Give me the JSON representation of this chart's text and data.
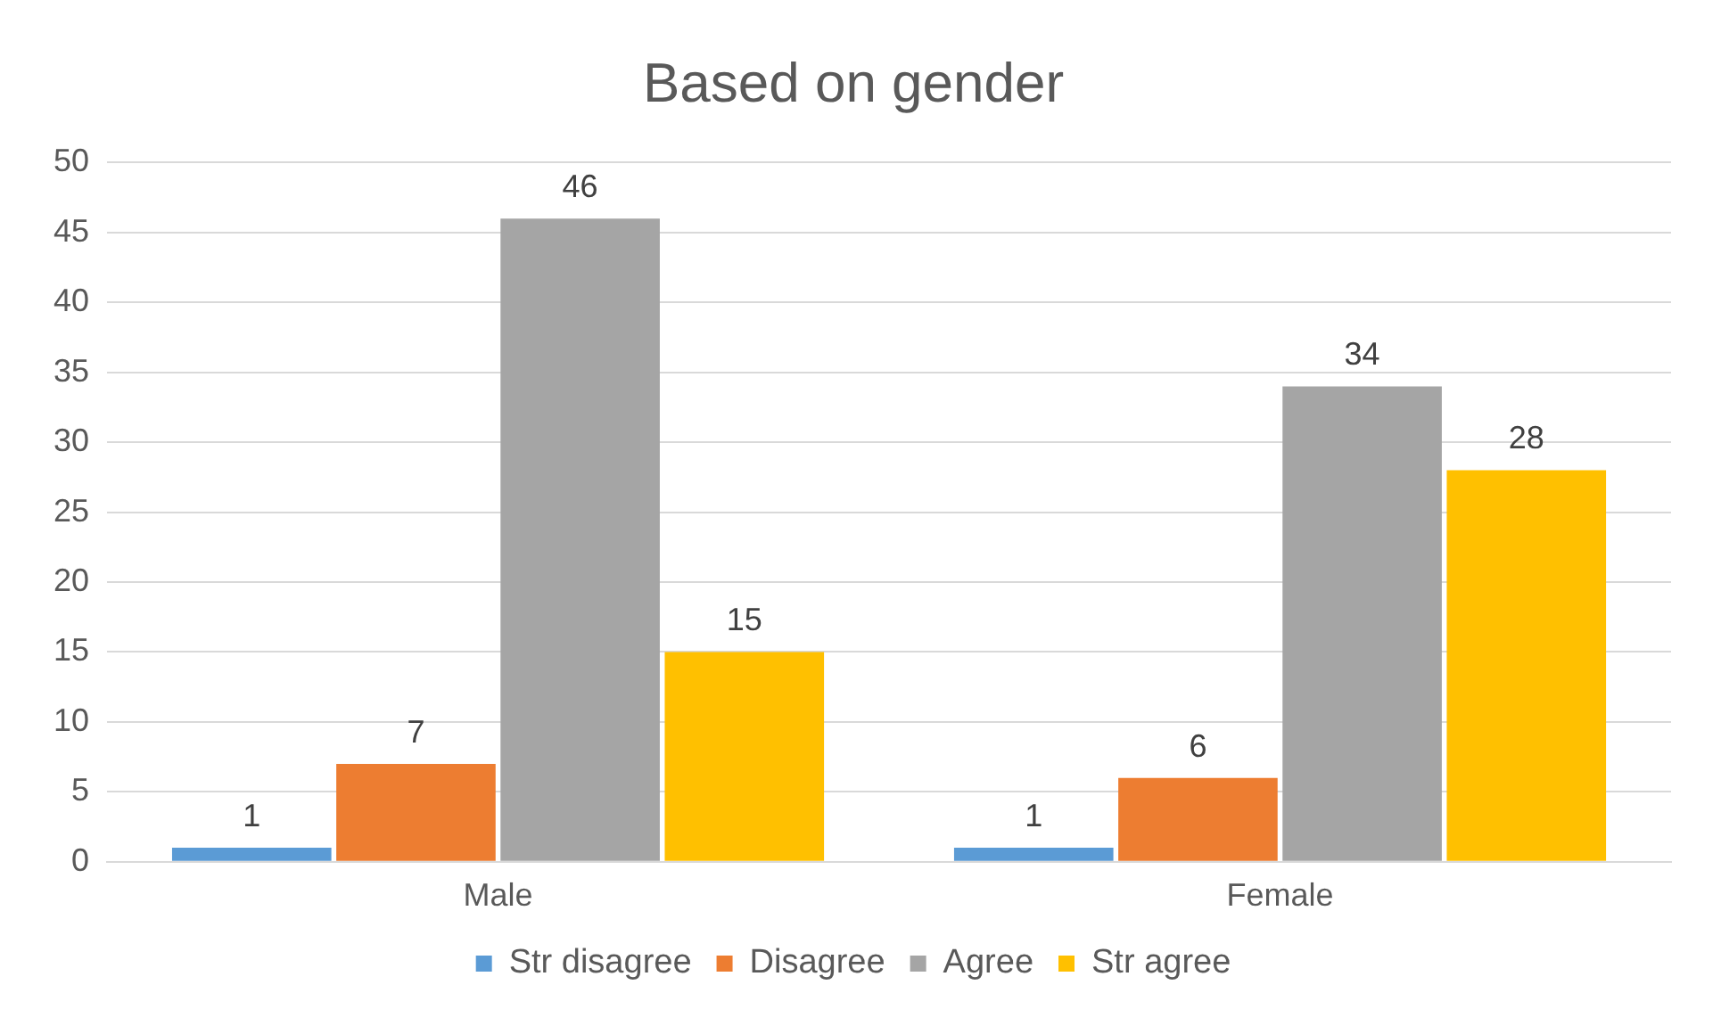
{
  "chart_data": {
    "type": "bar",
    "title": "Based on gender",
    "categories": [
      "Male",
      "Female"
    ],
    "series": [
      {
        "name": "Str disagree",
        "color": "#5b9bd5",
        "values": [
          1,
          1
        ]
      },
      {
        "name": "Disagree",
        "color": "#ed7d31",
        "values": [
          7,
          6
        ]
      },
      {
        "name": "Agree",
        "color": "#a5a5a5",
        "values": [
          46,
          34
        ]
      },
      {
        "name": "Str agree",
        "color": "#ffc000",
        "values": [
          15,
          28
        ]
      }
    ],
    "ylim": [
      0,
      50
    ],
    "yticks": [
      0,
      5,
      10,
      15,
      20,
      25,
      30,
      35,
      40,
      45,
      50
    ],
    "grid": "y",
    "legend": "bottom",
    "data_labels": true
  }
}
